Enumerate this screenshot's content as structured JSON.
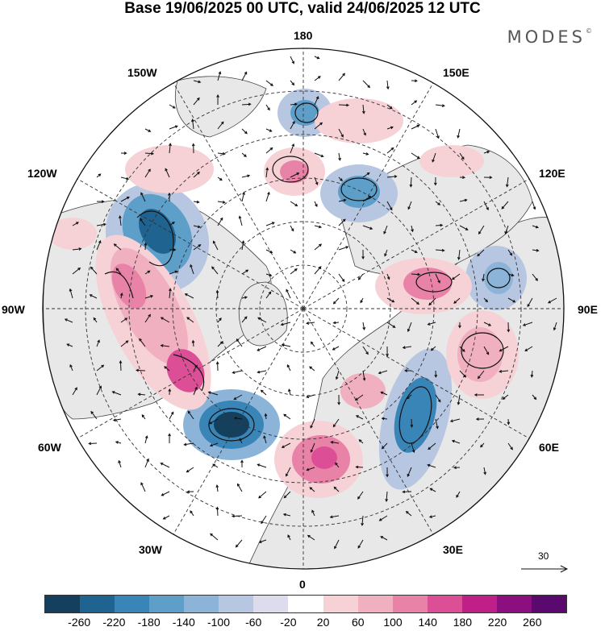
{
  "title": "Base 19/06/2025 00 UTC, valid 24/06/2025 12 UTC",
  "logo": "MODES",
  "logo_mark": "©",
  "lon_labels": {
    "top": "180",
    "top_right": "150E",
    "right_upper": "120E",
    "right": "90E",
    "right_lower": "60E",
    "bottom_right": "30E",
    "bottom": "0",
    "bottom_left": "30W",
    "left_lower": "60W",
    "left": "90W",
    "left_upper": "120W",
    "top_left": "150W"
  },
  "reference_vector": "30",
  "colorbar": {
    "ticks": [
      "-260",
      "-220",
      "-180",
      "-140",
      "-100",
      "-60",
      "-20",
      "20",
      "60",
      "100",
      "140",
      "180",
      "220",
      "260"
    ],
    "colors": [
      "#14405e",
      "#1f6391",
      "#3a85b8",
      "#5e9fca",
      "#8cb4d8",
      "#b7c6e1",
      "#dcdcec",
      "#ffffff",
      "#f6d2d6",
      "#f0b0c0",
      "#e982a7",
      "#dc4f96",
      "#bf1f87",
      "#8c0f80",
      "#5a0a6e"
    ]
  },
  "anomalies": [
    {
      "sign": "neg",
      "level": 6,
      "name": "low-west-atlantic"
    },
    {
      "sign": "neg",
      "level": 5,
      "name": "low-north-america"
    },
    {
      "sign": "neg",
      "level": 4,
      "name": "low-scandinavia"
    },
    {
      "sign": "neg",
      "level": 3,
      "name": "low-east-siberia"
    },
    {
      "sign": "neg",
      "level": 3,
      "name": "low-north-pacific"
    },
    {
      "sign": "neg",
      "level": 2,
      "name": "low-central-asia"
    },
    {
      "sign": "pos",
      "level": 5,
      "name": "high-north-america-east"
    },
    {
      "sign": "pos",
      "level": 4,
      "name": "high-central-canada"
    },
    {
      "sign": "pos",
      "level": 4,
      "name": "high-europe"
    },
    {
      "sign": "pos",
      "level": 3,
      "name": "high-siberia"
    },
    {
      "sign": "pos",
      "level": 3,
      "name": "high-kazakhstan"
    },
    {
      "sign": "pos",
      "level": 2,
      "name": "high-bering"
    }
  ]
}
